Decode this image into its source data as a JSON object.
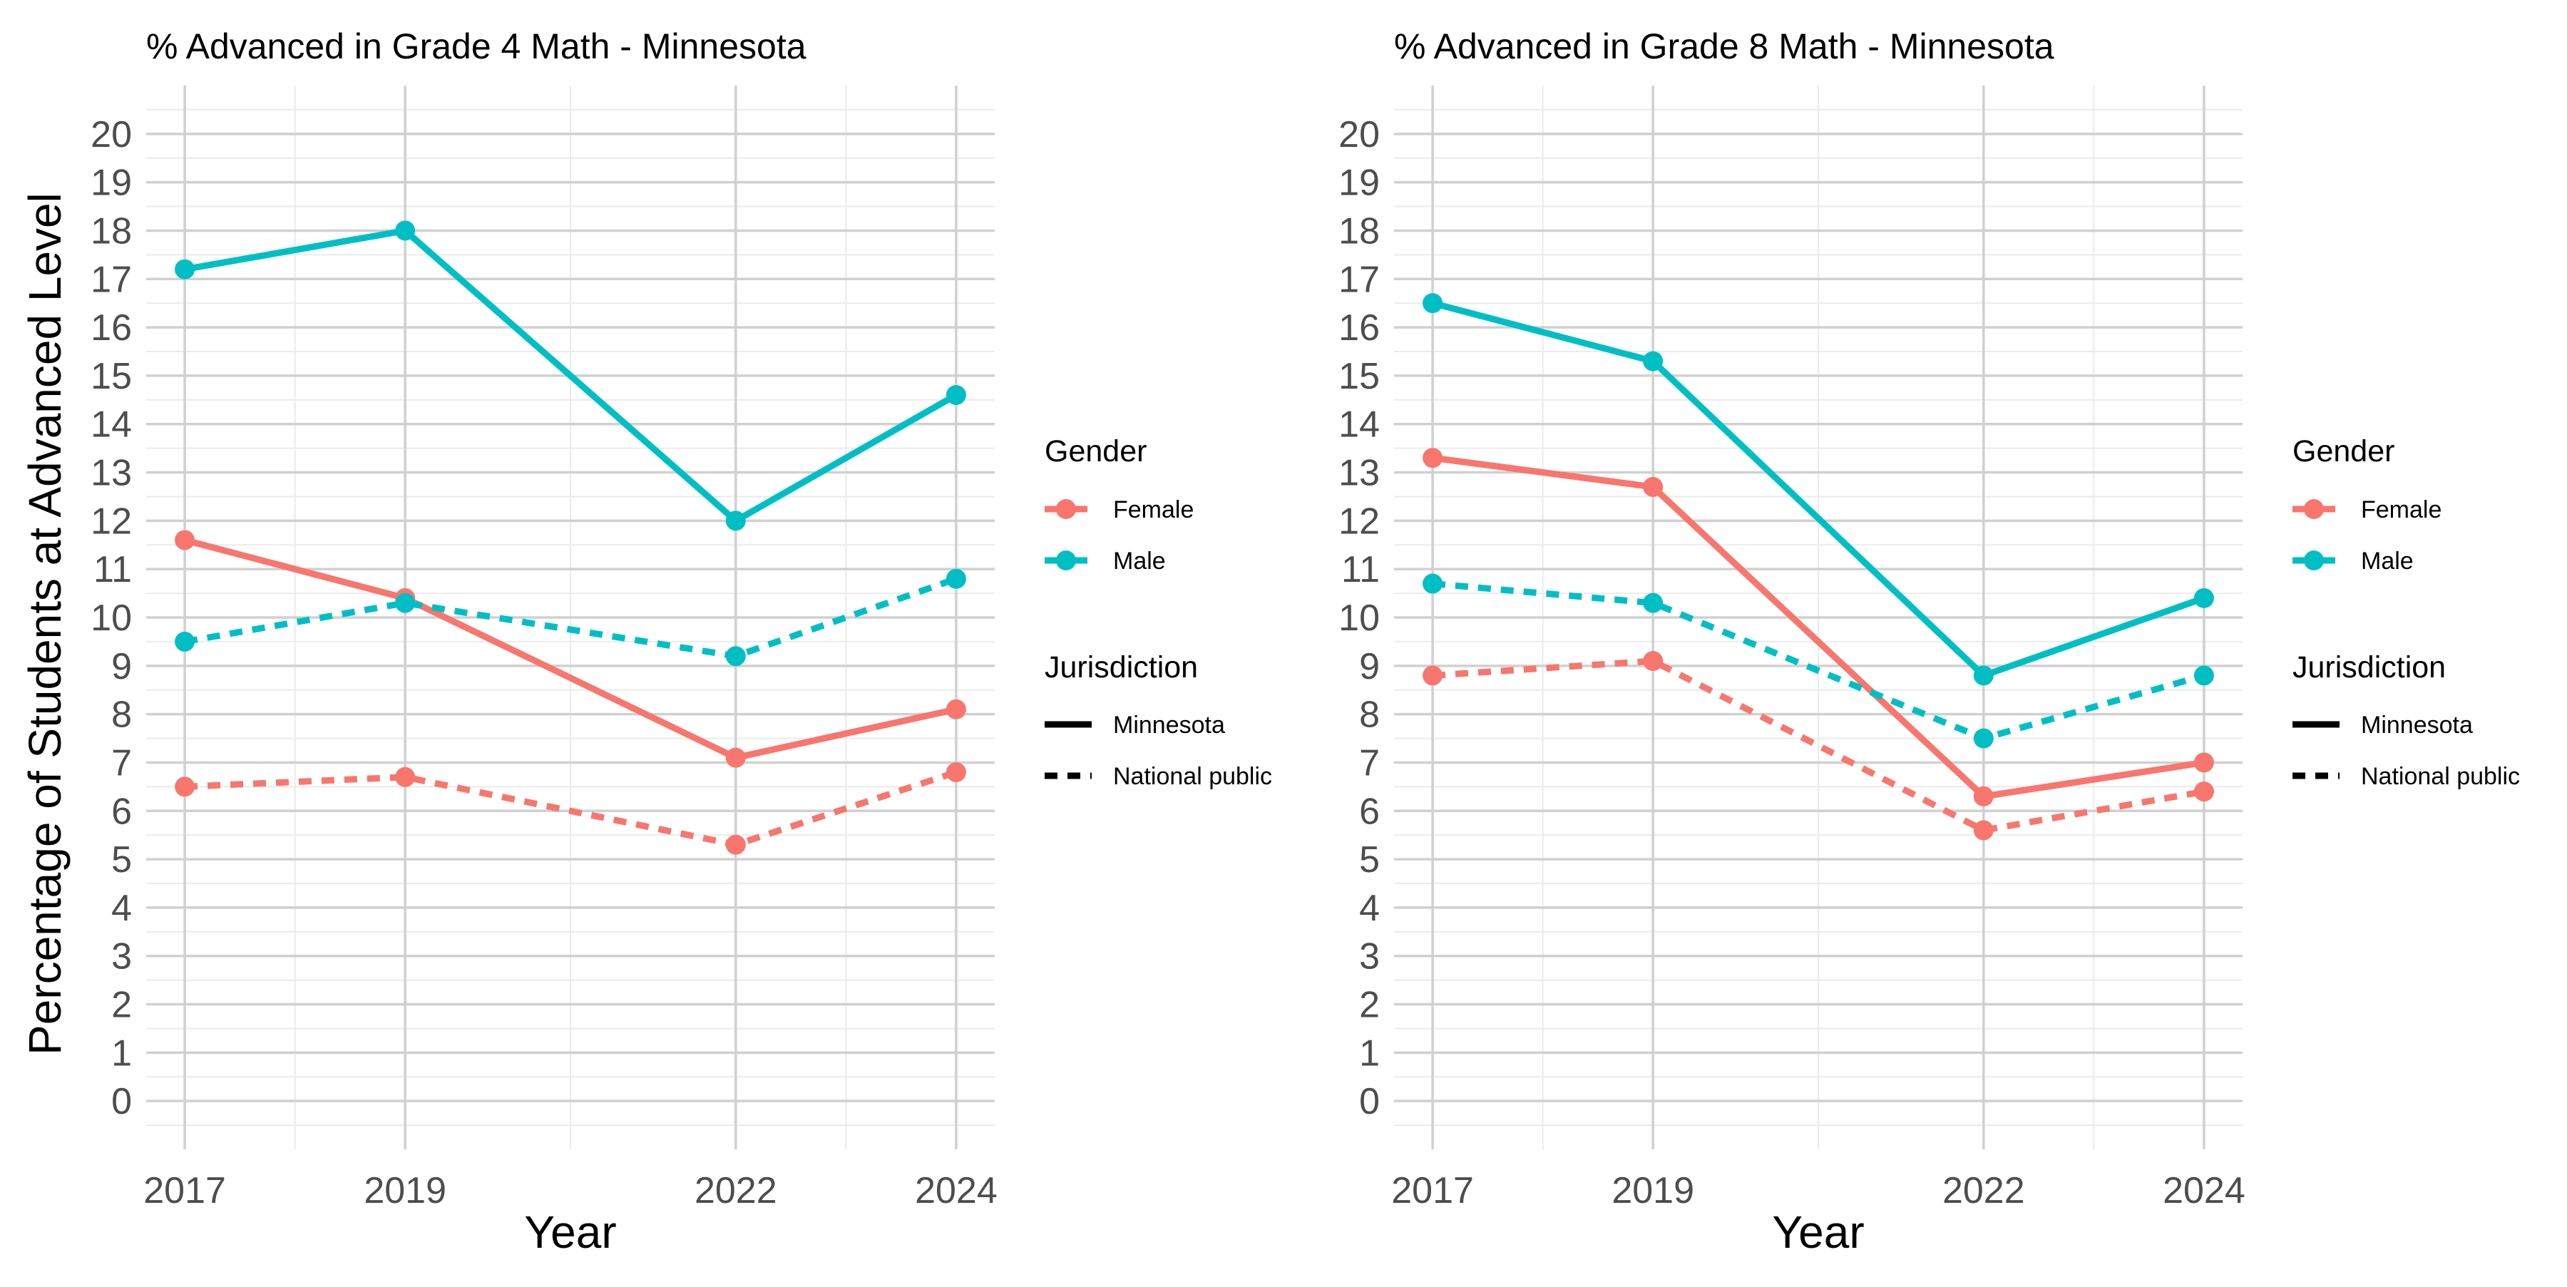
{
  "shared": {
    "ylabel": "Percentage of Students at Advanced Level",
    "xlabel": "Year",
    "legend": {
      "gender_title": "Gender",
      "gender_items": [
        {
          "label": "Female",
          "color": "#F8766D"
        },
        {
          "label": "Male",
          "color": "#00BFC4"
        }
      ],
      "jurisdiction_title": "Jurisdiction",
      "jurisdiction_items": [
        {
          "label": "Minnesota",
          "linetype": "solid"
        },
        {
          "label": "National public",
          "linetype": "dashed"
        }
      ]
    }
  },
  "chart_data": [
    {
      "type": "line",
      "title": "% Advanced in Grade 4 Math - Minnesota",
      "xlabel": "Year",
      "ylabel": "Percentage of Students at Advanced Level",
      "x": [
        2017,
        2019,
        2022,
        2024
      ],
      "x_ticks": [
        "2017",
        "2019",
        "2022",
        "2024"
      ],
      "ylim": [
        -1,
        21
      ],
      "y_ticks": [
        0,
        1,
        2,
        3,
        4,
        5,
        6,
        7,
        8,
        9,
        10,
        11,
        12,
        13,
        14,
        15,
        16,
        17,
        18,
        19,
        20
      ],
      "grid": true,
      "legend_position": "right",
      "series": [
        {
          "gender": "Male",
          "jurisdiction": "Minnesota",
          "color": "#00BFC4",
          "linetype": "solid",
          "values": [
            17.2,
            18.0,
            12.0,
            14.6
          ]
        },
        {
          "gender": "Female",
          "jurisdiction": "Minnesota",
          "color": "#F8766D",
          "linetype": "solid",
          "values": [
            11.6,
            10.4,
            7.1,
            8.1
          ]
        },
        {
          "gender": "Male",
          "jurisdiction": "National public",
          "color": "#00BFC4",
          "linetype": "dashed",
          "values": [
            9.5,
            10.3,
            9.2,
            10.8
          ]
        },
        {
          "gender": "Female",
          "jurisdiction": "National public",
          "color": "#F8766D",
          "linetype": "dashed",
          "values": [
            6.5,
            6.7,
            5.3,
            6.8
          ]
        }
      ]
    },
    {
      "type": "line",
      "title": "% Advanced in Grade 8 Math - Minnesota",
      "xlabel": "Year",
      "ylabel": "",
      "x": [
        2017,
        2019,
        2022,
        2024
      ],
      "x_ticks": [
        "2017",
        "2019",
        "2022",
        "2024"
      ],
      "ylim": [
        -1,
        21
      ],
      "y_ticks": [
        0,
        1,
        2,
        3,
        4,
        5,
        6,
        7,
        8,
        9,
        10,
        11,
        12,
        13,
        14,
        15,
        16,
        17,
        18,
        19,
        20
      ],
      "grid": true,
      "legend_position": "right",
      "series": [
        {
          "gender": "Male",
          "jurisdiction": "Minnesota",
          "color": "#00BFC4",
          "linetype": "solid",
          "values": [
            16.5,
            15.3,
            8.8,
            10.4
          ]
        },
        {
          "gender": "Female",
          "jurisdiction": "Minnesota",
          "color": "#F8766D",
          "linetype": "solid",
          "values": [
            13.3,
            12.7,
            6.3,
            7.0
          ]
        },
        {
          "gender": "Male",
          "jurisdiction": "National public",
          "color": "#00BFC4",
          "linetype": "dashed",
          "values": [
            10.7,
            10.3,
            7.5,
            8.8
          ]
        },
        {
          "gender": "Female",
          "jurisdiction": "National public",
          "color": "#F8766D",
          "linetype": "dashed",
          "values": [
            8.8,
            9.1,
            5.6,
            6.4
          ]
        }
      ]
    }
  ]
}
